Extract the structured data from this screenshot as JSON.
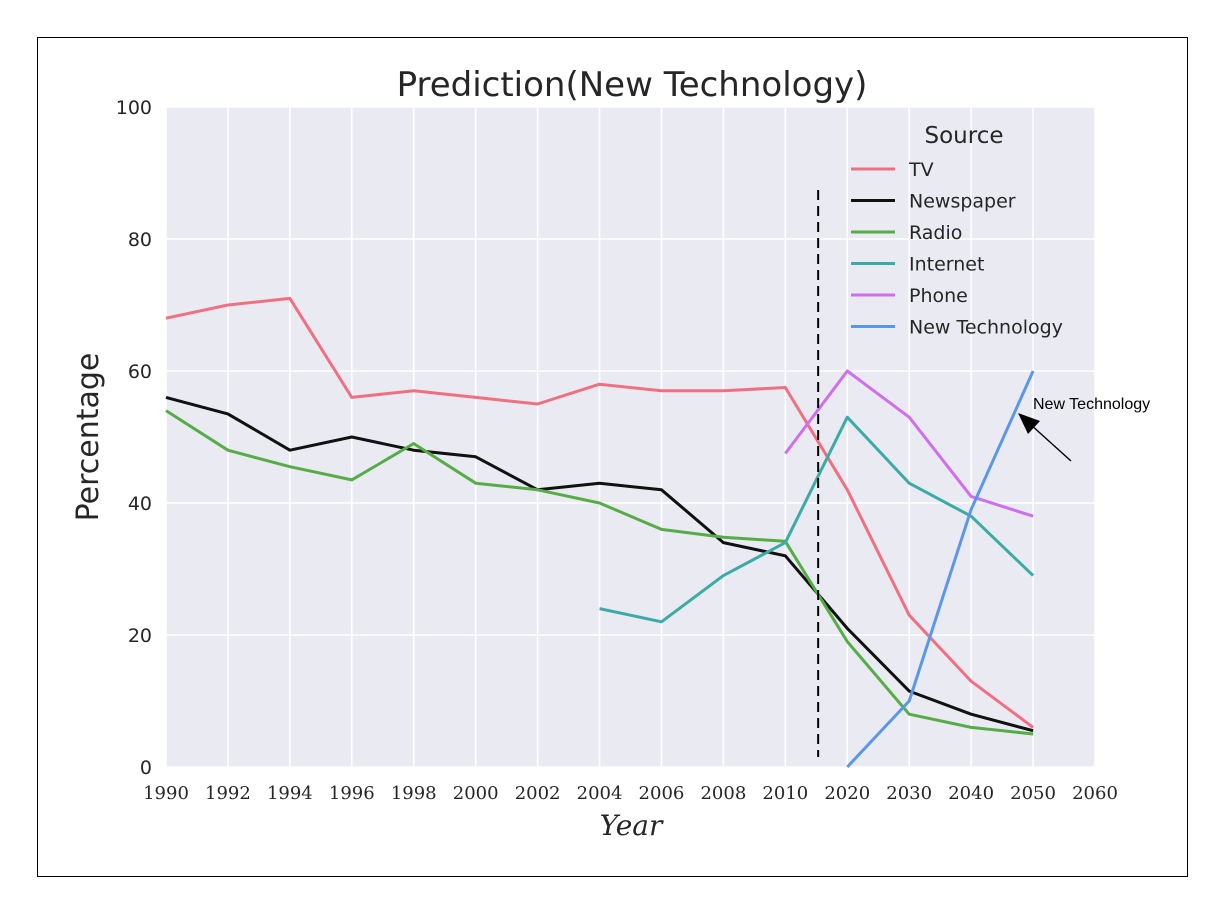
{
  "chart_data": {
    "type": "line",
    "title": "Prediction(New Technology)",
    "xlabel": "Year",
    "ylabel": "Percentage",
    "x_ticks": [
      "1990",
      "1992",
      "1994",
      "1996",
      "1998",
      "2000",
      "2002",
      "2004",
      "2006",
      "2008",
      "2010",
      "2020",
      "2030",
      "2040",
      "2050",
      "2060"
    ],
    "y_ticks": [
      "0",
      "20",
      "40",
      "60",
      "80",
      "100"
    ],
    "ylim": [
      0,
      100
    ],
    "grid": true,
    "background": "#eaeaf2",
    "legend": {
      "title": "Source",
      "position": "top-right"
    },
    "annotation": {
      "text": "New Technology",
      "arrow": true
    },
    "vertical_dashed_line_between": [
      "2010",
      "2020"
    ],
    "series": [
      {
        "name": "TV",
        "color": "#f07081",
        "x": [
          "1990",
          "1992",
          "1994",
          "1996",
          "1998",
          "2000",
          "2002",
          "2004",
          "2006",
          "2008",
          "2010",
          "2020",
          "2030",
          "2040",
          "2050"
        ],
        "y": [
          68,
          70,
          71,
          56,
          57,
          56,
          55,
          58,
          57,
          57,
          57.5,
          42,
          23,
          13,
          6
        ]
      },
      {
        "name": "Newspaper",
        "color": "#111111",
        "x": [
          "1990",
          "1992",
          "1994",
          "1996",
          "1998",
          "2000",
          "2002",
          "2004",
          "2006",
          "2008",
          "2010",
          "2020",
          "2030",
          "2040",
          "2050"
        ],
        "y": [
          56,
          53.5,
          48,
          50,
          48,
          47,
          42,
          43,
          42,
          34,
          32,
          21,
          11.5,
          8,
          5.5
        ]
      },
      {
        "name": "Radio",
        "color": "#56ad47",
        "x": [
          "1990",
          "1992",
          "1994",
          "1996",
          "1998",
          "2000",
          "2002",
          "2004",
          "2006",
          "2008",
          "2010",
          "2020",
          "2030",
          "2040",
          "2050"
        ],
        "y": [
          54,
          48,
          45.5,
          43.5,
          49,
          43,
          42,
          40,
          36,
          34.8,
          34.2,
          19,
          8,
          6,
          5
        ]
      },
      {
        "name": "Internet",
        "color": "#3aaba6",
        "x": [
          "2004",
          "2006",
          "2008",
          "2010",
          "2020",
          "2030",
          "2040",
          "2050"
        ],
        "y": [
          24,
          22,
          29,
          34,
          53,
          43,
          38,
          29
        ]
      },
      {
        "name": "Phone",
        "color": "#cf6ff0",
        "x": [
          "2010",
          "2020",
          "2030",
          "2040",
          "2050"
        ],
        "y": [
          47.5,
          60,
          53,
          41,
          38
        ]
      },
      {
        "name": "New Technology",
        "color": "#5b97e8",
        "x": [
          "2020",
          "2030",
          "2040",
          "2050"
        ],
        "y": [
          0,
          10,
          39,
          60
        ]
      }
    ]
  }
}
